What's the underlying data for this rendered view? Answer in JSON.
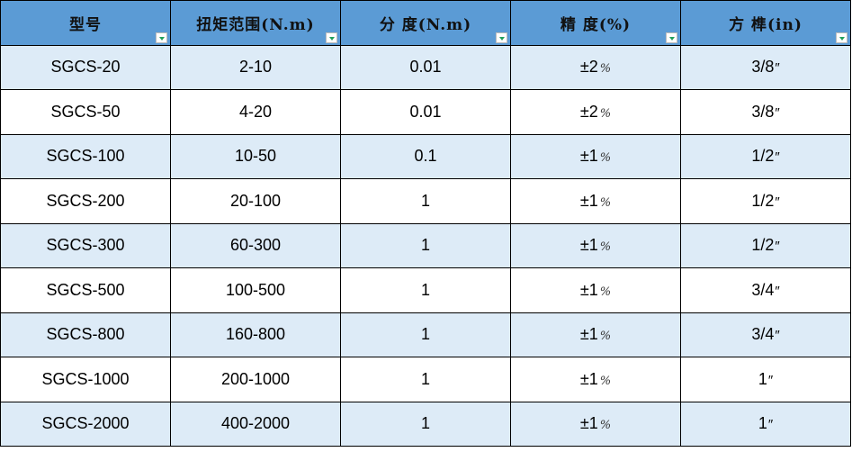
{
  "headers": [
    "型号",
    "扭矩范围(N.m)",
    "分 度(N.m)",
    "精 度(%)",
    "方 榫(in)"
  ],
  "filter_icon_color": "#22a05a",
  "colors": {
    "header_bg": "#5b9bd5",
    "row_alt_bg": "#ddebf7"
  },
  "rows": [
    {
      "model": "SGCS-20",
      "range": "2-10",
      "division": "0.01",
      "accuracy": "±2",
      "accuracy_unit": "%",
      "square": "3/8",
      "square_unit": "″"
    },
    {
      "model": "SGCS-50",
      "range": "4-20",
      "division": "0.01",
      "accuracy": "±2",
      "accuracy_unit": "%",
      "square": "3/8",
      "square_unit": "″"
    },
    {
      "model": "SGCS-100",
      "range": "10-50",
      "division": "0.1",
      "accuracy": "±1",
      "accuracy_unit": "%",
      "square": "1/2",
      "square_unit": "″"
    },
    {
      "model": "SGCS-200",
      "range": "20-100",
      "division": "1",
      "accuracy": "±1",
      "accuracy_unit": "%",
      "square": "1/2",
      "square_unit": "″"
    },
    {
      "model": "SGCS-300",
      "range": "60-300",
      "division": "1",
      "accuracy": "±1",
      "accuracy_unit": "%",
      "square": "1/2",
      "square_unit": "″"
    },
    {
      "model": "SGCS-500",
      "range": "100-500",
      "division": "1",
      "accuracy": "±1",
      "accuracy_unit": "%",
      "square": "3/4",
      "square_unit": "″"
    },
    {
      "model": "SGCS-800",
      "range": "160-800",
      "division": "1",
      "accuracy": "±1",
      "accuracy_unit": "%",
      "square": "3/4",
      "square_unit": "″"
    },
    {
      "model": "SGCS-1000",
      "range": "200-1000",
      "division": "1",
      "accuracy": "±1",
      "accuracy_unit": "%",
      "square": "1",
      "square_unit": "″"
    },
    {
      "model": "SGCS-2000",
      "range": "400-2000",
      "division": "1",
      "accuracy": "±1",
      "accuracy_unit": "%",
      "square": "1",
      "square_unit": "″"
    }
  ]
}
